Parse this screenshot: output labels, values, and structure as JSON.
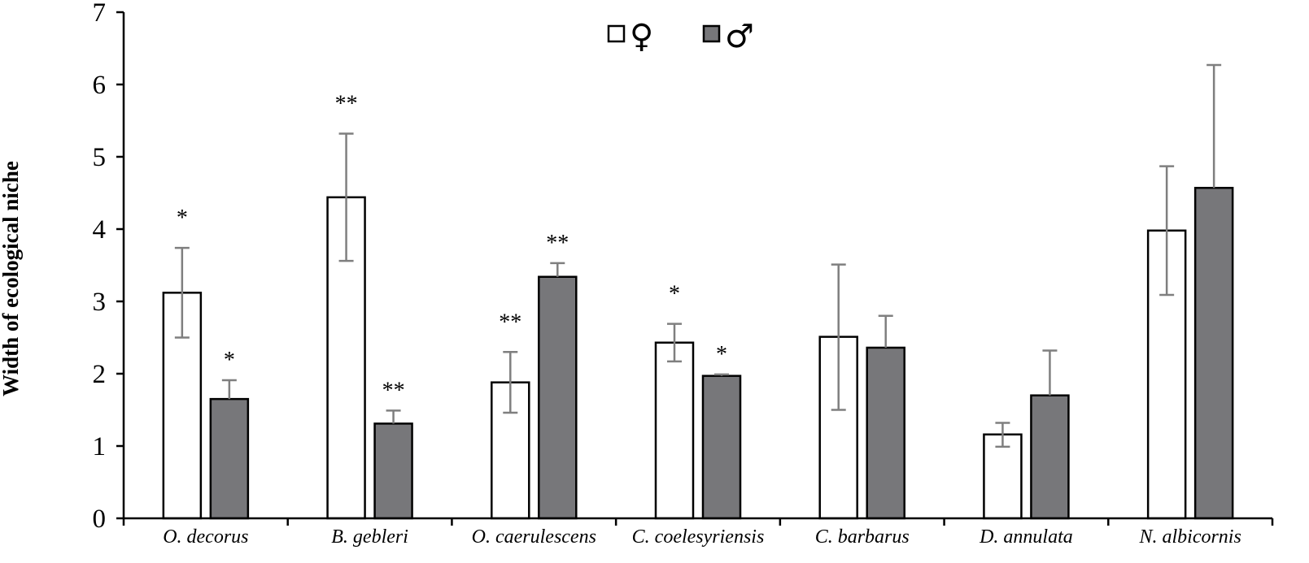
{
  "chart_data": {
    "type": "bar",
    "ylabel": "Width of ecological niche",
    "ylim": [
      0,
      7
    ],
    "yticks": [
      "0",
      "1",
      "2",
      "3",
      "4",
      "5",
      "6",
      "7"
    ],
    "categories": [
      "O. decorus",
      "B. gebleri",
      "O. caerulescens",
      "C. coelesyriensis",
      "C. barbarus",
      "D. annulata",
      "N. albicornis"
    ],
    "series": [
      {
        "name": "♀",
        "color": "#ffffff",
        "values": [
          3.12,
          4.44,
          1.88,
          2.43,
          2.51,
          1.16,
          3.98
        ],
        "err_low": [
          2.5,
          3.56,
          1.46,
          2.17,
          1.5,
          0.99,
          3.09
        ],
        "err_high": [
          3.74,
          5.32,
          2.3,
          2.69,
          3.51,
          1.32,
          4.87
        ],
        "significance": [
          "*",
          "**",
          "**",
          "*",
          "",
          "",
          ""
        ]
      },
      {
        "name": "♂",
        "color": "#77777a",
        "values": [
          1.65,
          1.31,
          3.34,
          1.97,
          2.36,
          1.7,
          4.57
        ],
        "err_low": [
          1.65,
          1.31,
          3.34,
          1.97,
          2.36,
          1.7,
          4.57
        ],
        "err_high": [
          1.91,
          1.49,
          3.53,
          1.99,
          2.8,
          2.32,
          6.27
        ],
        "significance": [
          "*",
          "**",
          "**",
          "*",
          "",
          "",
          ""
        ]
      }
    ],
    "error_bar_color": "#7f7f7f",
    "legend_position": "top-center"
  }
}
